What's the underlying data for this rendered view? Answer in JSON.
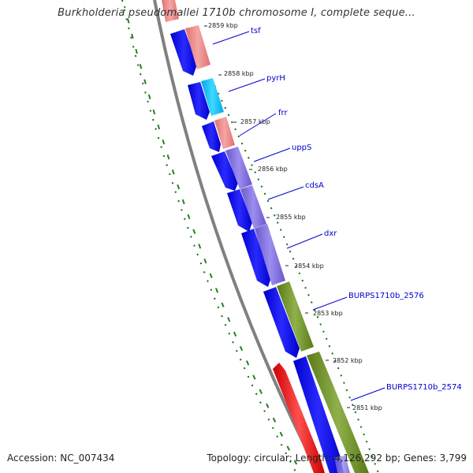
{
  "title": "Burkholderia pseudomallei 1710b chromosome I, complete seque...",
  "footer": {
    "accession": "Accession: NC_007434",
    "summary": "Topology: circular; Length: 4,126,292 bp; Genes: 3,799"
  },
  "colors": {
    "cds_dark": "#0000ee",
    "backbone": "#808080",
    "gc_dots": "#107010",
    "trna_pink": "#ee8080",
    "cyan": "#00c0f0",
    "lavender": "#7b68d8",
    "olive": "#6b8e23",
    "red": "#ff0000",
    "label_blue": "#0000cc"
  },
  "ticks": [
    "2859 kbp",
    "2858 kbp",
    "2857 kbp",
    "2856 kbp",
    "2855 kbp",
    "2854 kbp",
    "2853 kbp",
    "2852 kbp",
    "2851 kbp"
  ],
  "genes": [
    "tsf",
    "pyrH",
    "frr",
    "uppS",
    "cdsA",
    "dxr",
    "BURPS1710b_2576",
    "BURPS1710b_2574"
  ]
}
